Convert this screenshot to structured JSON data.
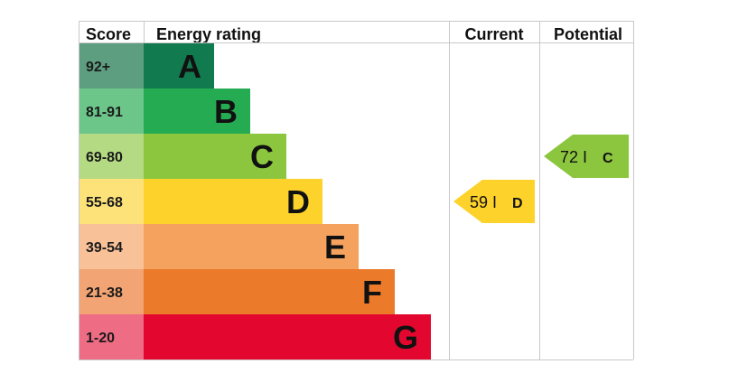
{
  "chart_data": {
    "type": "table",
    "headers": {
      "score": "Score",
      "energy_rating": "Energy rating",
      "current": "Current",
      "potential": "Potential"
    },
    "bands": [
      {
        "score": "92+",
        "letter": "A",
        "color": "#117a4f",
        "score_color": "#5e9e80"
      },
      {
        "score": "81-91",
        "letter": "B",
        "color": "#25ab52",
        "score_color": "#6cc68a"
      },
      {
        "score": "69-80",
        "letter": "C",
        "color": "#8cc63f",
        "score_color": "#b4db83"
      },
      {
        "score": "55-68",
        "letter": "D",
        "color": "#fdd22a",
        "score_color": "#fde27a"
      },
      {
        "score": "39-54",
        "letter": "E",
        "color": "#f6a25f",
        "score_color": "#f8c198"
      },
      {
        "score": "21-38",
        "letter": "F",
        "color": "#ec7a2b",
        "score_color": "#f2a474"
      },
      {
        "score": "1-20",
        "letter": "G",
        "color": "#e3072f",
        "score_color": "#ee6c84"
      }
    ],
    "current": {
      "value": 59,
      "letter": "D",
      "color": "#fdd22a"
    },
    "potential": {
      "value": 72,
      "letter": "C",
      "color": "#8cc63f"
    },
    "separator": "I"
  }
}
